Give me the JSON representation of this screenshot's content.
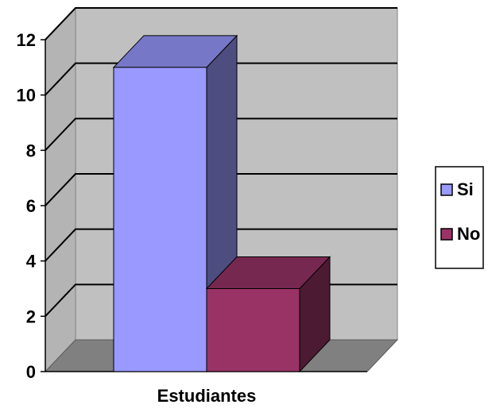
{
  "chart_data": {
    "type": "bar",
    "title": "",
    "xlabel": "",
    "ylabel": "",
    "categories": [
      "Estudiantes"
    ],
    "series": [
      {
        "name": "Si",
        "values": [
          11
        ],
        "color": "#9999ff"
      },
      {
        "name": "No",
        "values": [
          3
        ],
        "color": "#993366"
      }
    ],
    "ylim": [
      0,
      12
    ],
    "yticks": [
      0,
      2,
      4,
      6,
      8,
      10,
      12
    ],
    "grid": true,
    "legend_position": "right",
    "style": "3d-clustered-column"
  }
}
